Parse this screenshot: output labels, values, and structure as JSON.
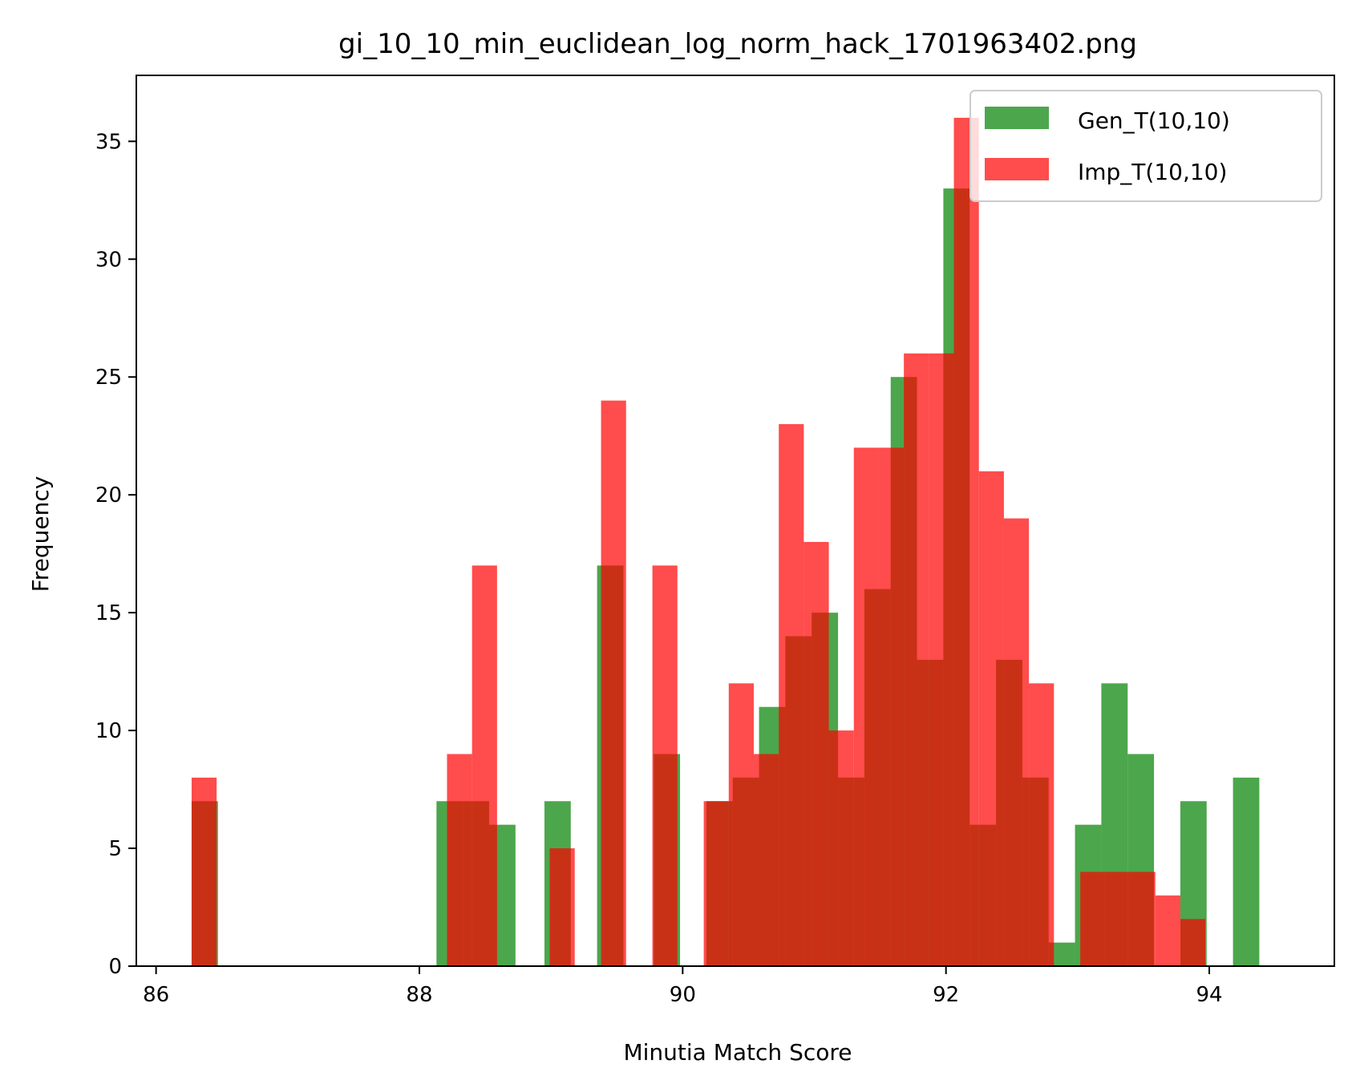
{
  "chart_data": {
    "type": "bar",
    "title": "gi_10_10_min_euclidean_log_norm_hack_1701963402.png",
    "xlabel": "Minutia Match Score",
    "ylabel": "Frequency",
    "xlim": [
      85.85,
      94.95
    ],
    "ylim": [
      0,
      37.8
    ],
    "xticks": [
      86,
      88,
      90,
      92,
      94
    ],
    "yticks": [
      0,
      5,
      10,
      15,
      20,
      25,
      30,
      35
    ],
    "grid": false,
    "legend_position": "top-right",
    "series": [
      {
        "name": "Gen_T(10,10)",
        "color": "#008000",
        "opacity": 0.7,
        "bins": [
          {
            "x0": 86.27,
            "x1": 86.47,
            "value": 7
          },
          {
            "x0": 88.13,
            "x1": 88.33,
            "value": 7
          },
          {
            "x0": 88.33,
            "x1": 88.53,
            "value": 7
          },
          {
            "x0": 88.53,
            "x1": 88.73,
            "value": 6
          },
          {
            "x0": 88.95,
            "x1": 89.15,
            "value": 7
          },
          {
            "x0": 89.35,
            "x1": 89.55,
            "value": 17
          },
          {
            "x0": 89.78,
            "x1": 89.98,
            "value": 9
          },
          {
            "x0": 90.18,
            "x1": 90.38,
            "value": 7
          },
          {
            "x0": 90.38,
            "x1": 90.58,
            "value": 8
          },
          {
            "x0": 90.58,
            "x1": 90.78,
            "value": 11
          },
          {
            "x0": 90.78,
            "x1": 90.98,
            "value": 14
          },
          {
            "x0": 90.98,
            "x1": 91.18,
            "value": 15
          },
          {
            "x0": 91.18,
            "x1": 91.38,
            "value": 8
          },
          {
            "x0": 91.38,
            "x1": 91.58,
            "value": 16
          },
          {
            "x0": 91.58,
            "x1": 91.78,
            "value": 25
          },
          {
            "x0": 91.78,
            "x1": 91.98,
            "value": 13
          },
          {
            "x0": 91.98,
            "x1": 92.18,
            "value": 33
          },
          {
            "x0": 92.18,
            "x1": 92.38,
            "value": 6
          },
          {
            "x0": 92.38,
            "x1": 92.58,
            "value": 13
          },
          {
            "x0": 92.58,
            "x1": 92.78,
            "value": 8
          },
          {
            "x0": 92.78,
            "x1": 92.98,
            "value": 1
          },
          {
            "x0": 92.98,
            "x1": 93.18,
            "value": 6
          },
          {
            "x0": 93.18,
            "x1": 93.38,
            "value": 12
          },
          {
            "x0": 93.38,
            "x1": 93.58,
            "value": 9
          },
          {
            "x0": 93.78,
            "x1": 93.98,
            "value": 7
          },
          {
            "x0": 94.18,
            "x1": 94.38,
            "value": 8
          }
        ]
      },
      {
        "name": "Imp_T(10,10)",
        "color": "#ff0000",
        "opacity": 0.7,
        "bins": [
          {
            "x0": 86.27,
            "x1": 86.46,
            "value": 8
          },
          {
            "x0": 88.21,
            "x1": 88.4,
            "value": 9
          },
          {
            "x0": 88.4,
            "x1": 88.59,
            "value": 17
          },
          {
            "x0": 88.99,
            "x1": 89.18,
            "value": 5
          },
          {
            "x0": 89.38,
            "x1": 89.57,
            "value": 24
          },
          {
            "x0": 89.77,
            "x1": 89.96,
            "value": 17
          },
          {
            "x0": 90.16,
            "x1": 90.35,
            "value": 7
          },
          {
            "x0": 90.35,
            "x1": 90.54,
            "value": 12
          },
          {
            "x0": 90.54,
            "x1": 90.73,
            "value": 9
          },
          {
            "x0": 90.73,
            "x1": 90.92,
            "value": 23
          },
          {
            "x0": 90.92,
            "x1": 91.11,
            "value": 18
          },
          {
            "x0": 91.11,
            "x1": 91.3,
            "value": 10
          },
          {
            "x0": 91.3,
            "x1": 91.49,
            "value": 22
          },
          {
            "x0": 91.49,
            "x1": 91.68,
            "value": 22
          },
          {
            "x0": 91.68,
            "x1": 91.87,
            "value": 26
          },
          {
            "x0": 91.87,
            "x1": 92.06,
            "value": 26
          },
          {
            "x0": 92.06,
            "x1": 92.25,
            "value": 36
          },
          {
            "x0": 92.25,
            "x1": 92.44,
            "value": 21
          },
          {
            "x0": 92.44,
            "x1": 92.63,
            "value": 19
          },
          {
            "x0": 92.63,
            "x1": 92.82,
            "value": 12
          },
          {
            "x0": 93.02,
            "x1": 93.21,
            "value": 4
          },
          {
            "x0": 93.21,
            "x1": 93.4,
            "value": 4
          },
          {
            "x0": 93.4,
            "x1": 93.59,
            "value": 4
          },
          {
            "x0": 93.59,
            "x1": 93.78,
            "value": 3
          },
          {
            "x0": 93.78,
            "x1": 93.97,
            "value": 2
          }
        ]
      }
    ]
  }
}
